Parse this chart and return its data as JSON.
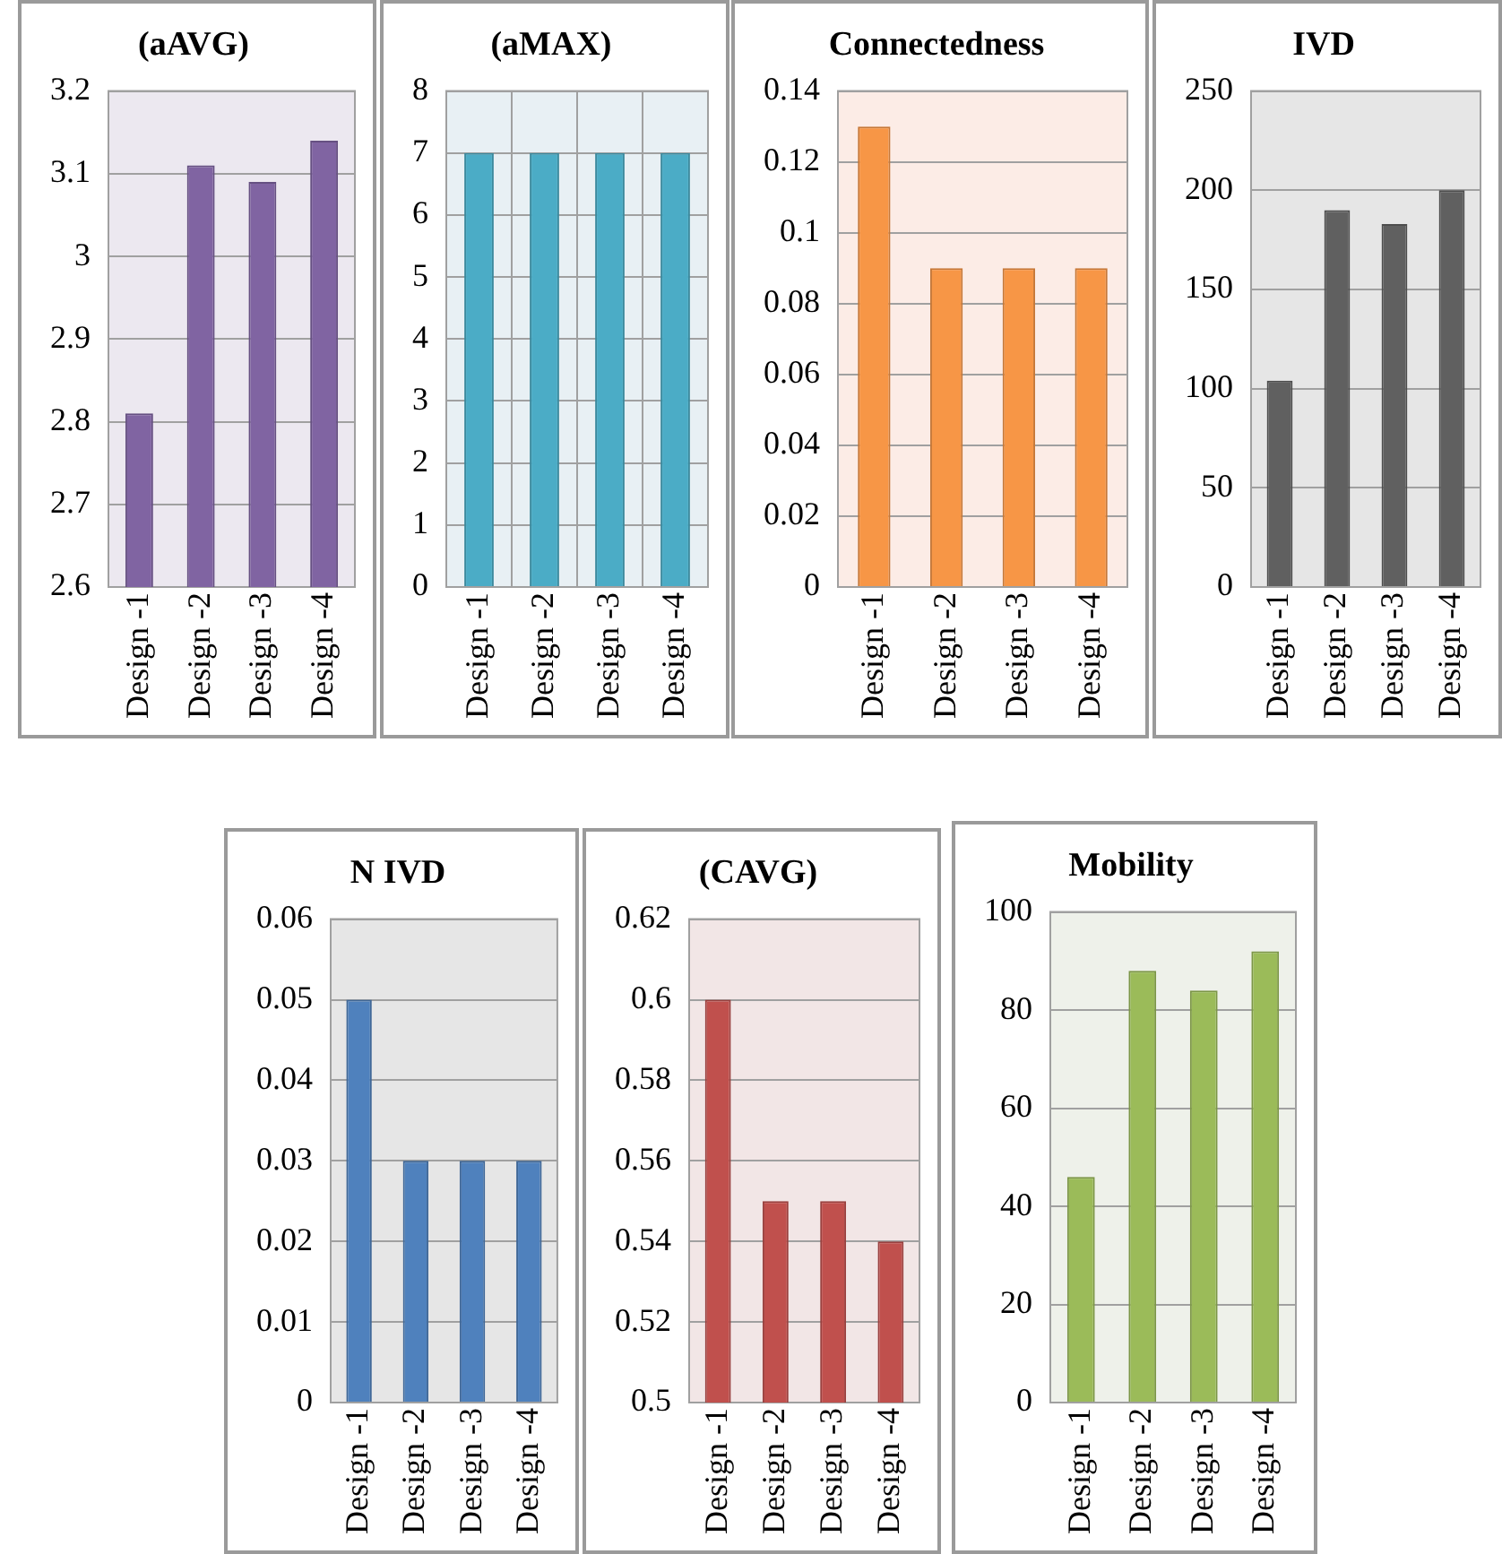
{
  "chart_data": [
    {
      "type": "bar",
      "title": "(aAVG)",
      "categories": [
        "Design -1",
        "Design -2",
        "Design -3",
        "Design -4"
      ],
      "values": [
        2.81,
        3.11,
        3.09,
        3.14
      ],
      "color": "#8064a2",
      "ylim": [
        2.6,
        3.2
      ],
      "yticks": [
        2.6,
        2.7,
        2.8,
        2.9,
        3,
        3.1,
        3.2
      ],
      "grid": "y"
    },
    {
      "type": "bar",
      "title": "(aMAX)",
      "categories": [
        "Design -1",
        "Design -2",
        "Design -3",
        "Design -4"
      ],
      "values": [
        7,
        7,
        7,
        7
      ],
      "color": "#4bacc6",
      "ylim": [
        0,
        8
      ],
      "yticks": [
        0,
        1,
        2,
        3,
        4,
        5,
        6,
        7,
        8
      ],
      "grid": "xy"
    },
    {
      "type": "bar",
      "title": "Connectedness",
      "categories": [
        "Design -1",
        "Design -2",
        "Design -3",
        "Design -4"
      ],
      "values": [
        0.13,
        0.09,
        0.09,
        0.09
      ],
      "color": "#f79646",
      "ylim": [
        0,
        0.14
      ],
      "yticks": [
        0,
        0.02,
        0.04,
        0.06,
        0.08,
        0.1,
        0.12,
        0.14
      ],
      "grid": "y"
    },
    {
      "type": "bar",
      "title": "IVD",
      "categories": [
        "Design -1",
        "Design -2",
        "Design -3",
        "Design -4"
      ],
      "values": [
        104,
        190,
        183,
        200
      ],
      "color": "#606060",
      "ylim": [
        0,
        250
      ],
      "yticks": [
        0,
        50,
        100,
        150,
        200,
        250
      ],
      "grid": "y"
    },
    {
      "type": "bar",
      "title": "N IVD",
      "categories": [
        "Design -1",
        "Design -2",
        "Design -3",
        "Design -4"
      ],
      "values": [
        0.05,
        0.03,
        0.03,
        0.03
      ],
      "color": "#4f81bd",
      "ylim": [
        0,
        0.06
      ],
      "yticks": [
        0,
        0.01,
        0.02,
        0.03,
        0.04,
        0.05,
        0.06
      ],
      "grid": "y"
    },
    {
      "type": "bar",
      "title": "(CAVG)",
      "categories": [
        "Design -1",
        "Design -2",
        "Design -3",
        "Design -4"
      ],
      "values": [
        0.6,
        0.55,
        0.55,
        0.54
      ],
      "color": "#c0504d",
      "ylim": [
        0.5,
        0.62
      ],
      "yticks": [
        0.5,
        0.52,
        0.54,
        0.56,
        0.58,
        0.6,
        0.62
      ],
      "grid": "y"
    },
    {
      "type": "bar",
      "title": "Mobility",
      "categories": [
        "Design -1",
        "Design -2",
        "Design -3",
        "Design -4"
      ],
      "values": [
        46,
        88,
        84,
        92
      ],
      "color": "#9bbb59",
      "ylim": [
        0,
        100
      ],
      "yticks": [
        0,
        20,
        40,
        60,
        80,
        100
      ],
      "grid": "y"
    }
  ]
}
